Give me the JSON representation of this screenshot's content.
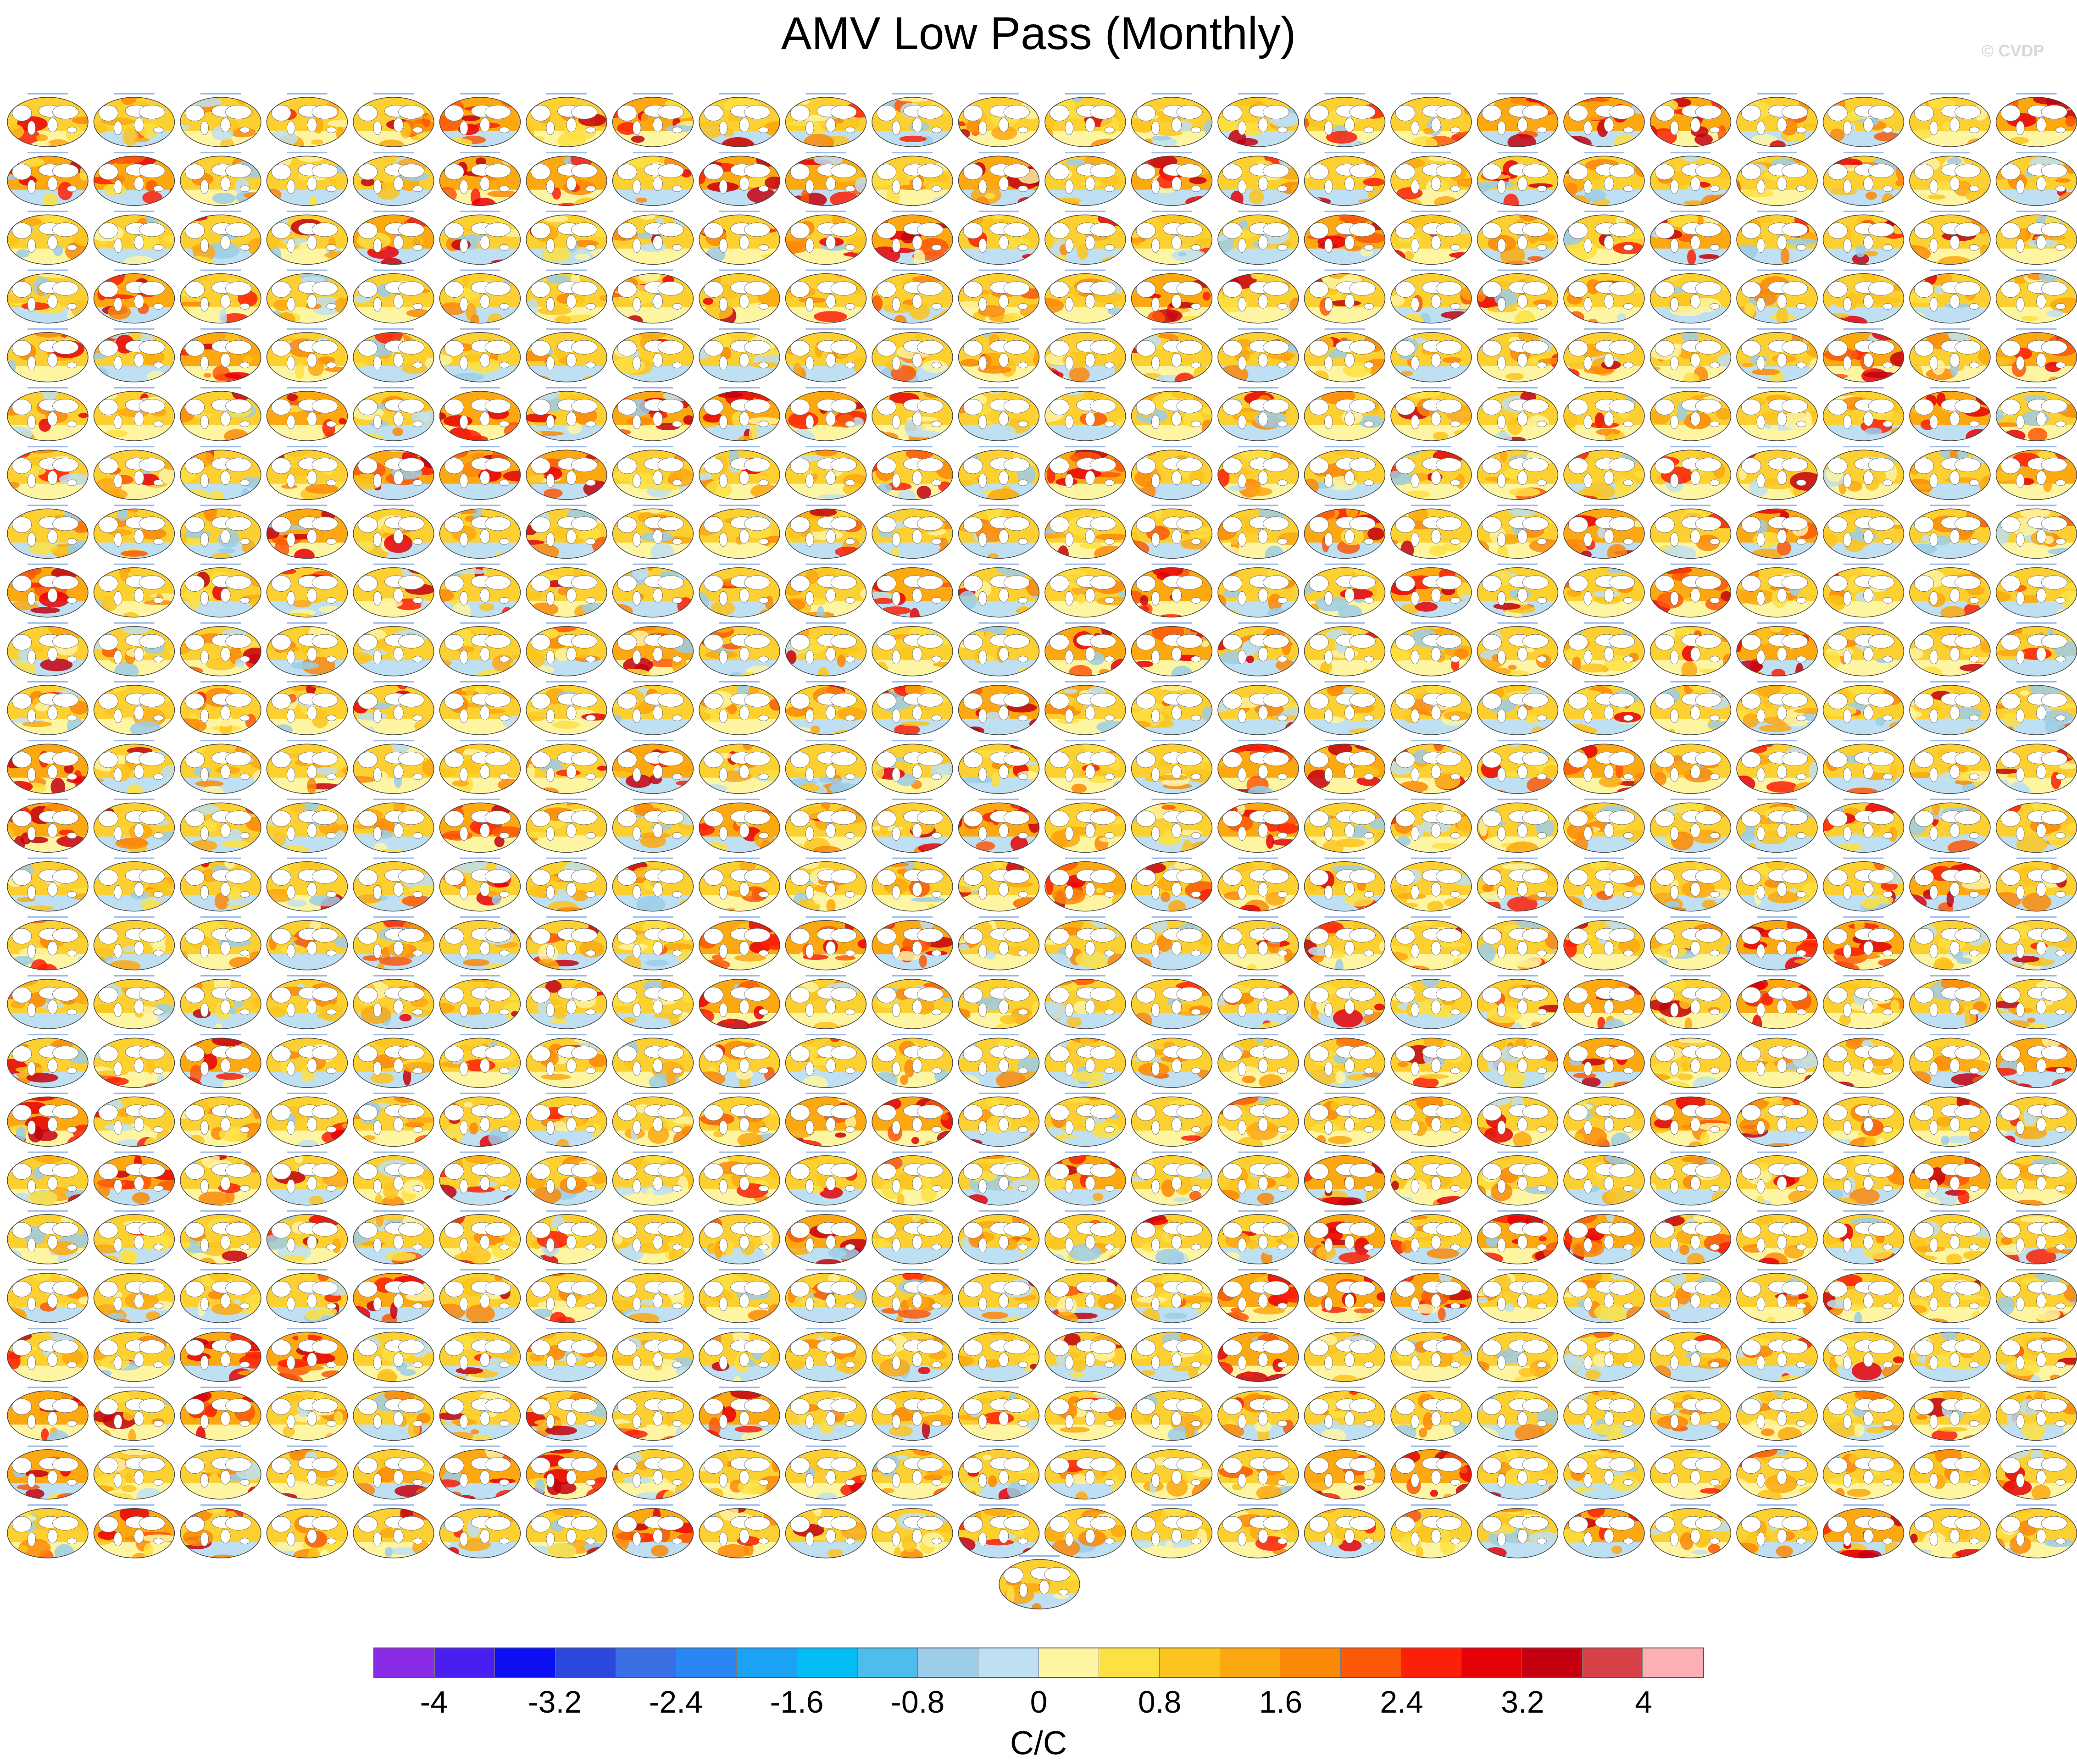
{
  "chart_data": {
    "type": "heatmap",
    "title": "AMV Low Pass (Monthly)",
    "watermark": "© CVDP",
    "colorbar": {
      "units": "C/C",
      "tick_labels": [
        "-4",
        "-3.2",
        "-2.4",
        "-1.6",
        "-0.8",
        "0",
        "0.8",
        "1.6",
        "2.4",
        "3.2",
        "4"
      ],
      "tick_values": [
        -4,
        -3.2,
        -2.4,
        -1.6,
        -0.8,
        0,
        0.8,
        1.6,
        2.4,
        3.2,
        4
      ],
      "levels_min": -4.4,
      "levels_step": 0.4,
      "colors": [
        "#8a2be8",
        "#4a1ef0",
        "#0c10f2",
        "#2c47dc",
        "#3a6ee2",
        "#2a86f2",
        "#1aa2f4",
        "#02bcf6",
        "#4ebcec",
        "#9ccce8",
        "#bee0f2",
        "#fdf5a2",
        "#fde042",
        "#fcc41e",
        "#fca810",
        "#fc8808",
        "#fc5808",
        "#fc2008",
        "#e60008",
        "#c40010",
        "#d84048",
        "#fcb0b4"
      ]
    },
    "panel_grid": {
      "rows": 25,
      "columns": 24,
      "extra_bottom_panels": 1
    },
    "panel_colors": [
      "#fde042",
      "#fcc41e",
      "#fca810",
      "#fc8808",
      "#fc5808",
      "#fc2008",
      "#e60008",
      "#bee0f2",
      "#9ccce8"
    ],
    "panels_intense_fraction": 0.18
  }
}
